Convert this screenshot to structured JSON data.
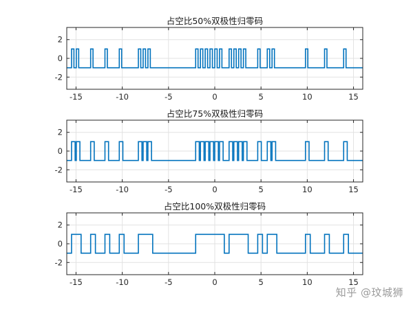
{
  "chart_data": [
    {
      "type": "line",
      "title": "占空比50%双极性归零码",
      "xlim": [
        -16,
        16
      ],
      "ylim": [
        -3.3,
        3.3
      ],
      "xticks": [
        -15,
        -10,
        -5,
        0,
        5,
        10,
        15
      ],
      "xtick_labels": [
        "-15",
        "-10",
        "-5",
        "0",
        "5",
        "10",
        "15"
      ],
      "yticks": [
        -2,
        0,
        2
      ],
      "ytick_labels": [
        "-2",
        "0",
        "2"
      ],
      "grid": true,
      "color": "#0072bd",
      "duty": 0.5,
      "high": 1,
      "low": -1,
      "symbols": [
        -1,
        1,
        1,
        -1,
        -1,
        1,
        -1,
        -1,
        1,
        -1,
        -1,
        1,
        -1,
        -1,
        -1,
        1,
        1,
        1,
        -1,
        -1,
        -1,
        -1,
        -1,
        -1,
        -1,
        -1,
        -1,
        1,
        1,
        1,
        1,
        1,
        1,
        -1,
        1,
        1,
        1,
        1,
        -1,
        -1,
        1,
        -1,
        1,
        1,
        -1,
        -1,
        -1,
        -1,
        -1,
        -1,
        1,
        -1,
        -1,
        -1,
        1,
        -1,
        -1,
        -1,
        1,
        -1,
        -1,
        -1
      ]
    },
    {
      "type": "line",
      "title": "占空比75%双极性归零码",
      "xlim": [
        -16,
        16
      ],
      "ylim": [
        -3.3,
        3.3
      ],
      "xticks": [
        -15,
        -10,
        -5,
        0,
        5,
        10,
        15
      ],
      "xtick_labels": [
        "-15",
        "-10",
        "-5",
        "0",
        "5",
        "10",
        "15"
      ],
      "yticks": [
        -2,
        0,
        2
      ],
      "ytick_labels": [
        "-2",
        "0",
        "2"
      ],
      "grid": true,
      "color": "#0072bd",
      "duty": 0.75,
      "high": 1,
      "low": -1,
      "symbols": [
        -1,
        1,
        1,
        -1,
        -1,
        1,
        -1,
        -1,
        1,
        -1,
        -1,
        1,
        -1,
        -1,
        -1,
        1,
        1,
        1,
        -1,
        -1,
        -1,
        -1,
        -1,
        -1,
        -1,
        -1,
        -1,
        1,
        1,
        1,
        1,
        1,
        1,
        -1,
        1,
        1,
        1,
        1,
        -1,
        -1,
        1,
        -1,
        1,
        1,
        -1,
        -1,
        -1,
        -1,
        -1,
        -1,
        1,
        -1,
        -1,
        -1,
        1,
        -1,
        -1,
        -1,
        1,
        -1,
        -1,
        -1
      ]
    },
    {
      "type": "line",
      "title": "占空比100%双极性归零码",
      "xlim": [
        -16,
        16
      ],
      "ylim": [
        -3.3,
        3.3
      ],
      "xticks": [
        -15,
        -10,
        -5,
        0,
        5,
        10,
        15
      ],
      "xtick_labels": [
        "-15",
        "-10",
        "-5",
        "0",
        "5",
        "10",
        "15"
      ],
      "yticks": [
        -2,
        0,
        2
      ],
      "ytick_labels": [
        "-2",
        "0",
        "2"
      ],
      "grid": true,
      "color": "#0072bd",
      "duty": 1.0,
      "high": 1,
      "low": -1,
      "symbols": [
        -1,
        1,
        1,
        -1,
        -1,
        1,
        -1,
        -1,
        1,
        -1,
        -1,
        1,
        -1,
        -1,
        -1,
        1,
        1,
        1,
        -1,
        -1,
        -1,
        -1,
        -1,
        -1,
        -1,
        -1,
        -1,
        1,
        1,
        1,
        1,
        1,
        1,
        -1,
        1,
        1,
        1,
        1,
        -1,
        -1,
        1,
        -1,
        1,
        1,
        -1,
        -1,
        -1,
        -1,
        -1,
        -1,
        1,
        -1,
        -1,
        -1,
        1,
        -1,
        -1,
        -1,
        1,
        -1,
        -1,
        -1
      ]
    }
  ],
  "watermark": "知乎 @玟城狮"
}
